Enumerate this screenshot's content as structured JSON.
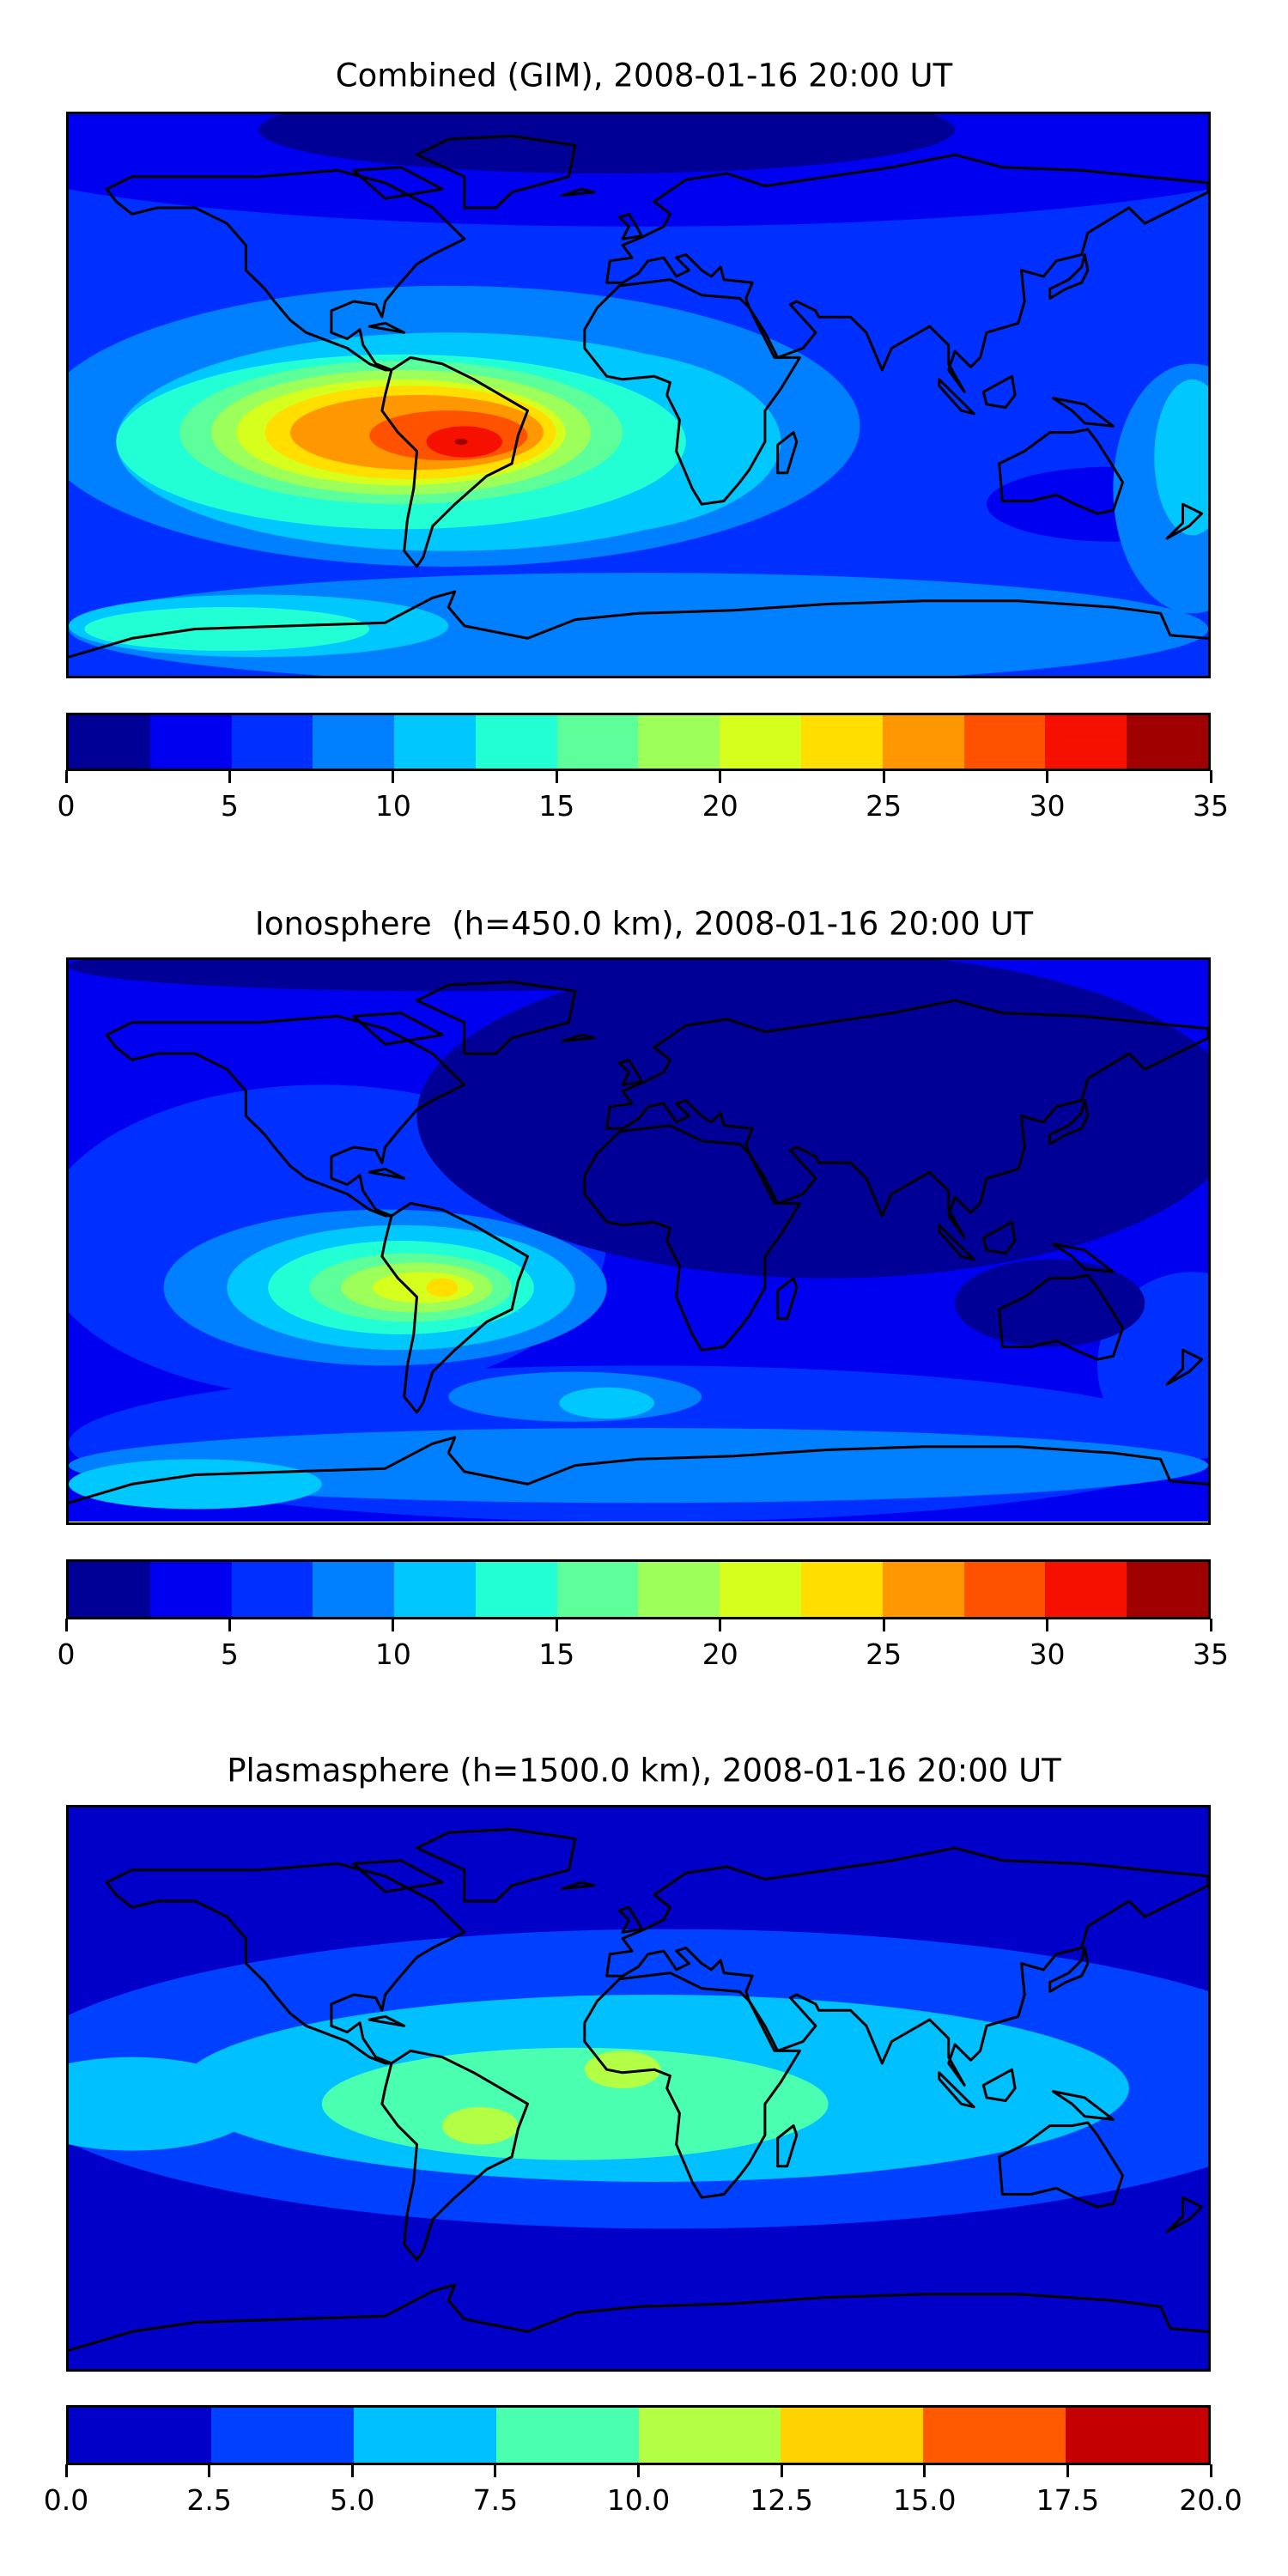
{
  "chart_data": [
    {
      "type": "heatmap",
      "subtype": "filled-contour world map",
      "title": "Combined (GIM), 2008-01-16 20:00 UT",
      "colorbar": {
        "levels": [
          0,
          2.5,
          5,
          7.5,
          10,
          12.5,
          15,
          17.5,
          20,
          22.5,
          25,
          27.5,
          30,
          32.5,
          35
        ],
        "ticks": [
          "0",
          "5",
          "10",
          "15",
          "20",
          "25",
          "30",
          "35"
        ],
        "tick_values": [
          0,
          5,
          10,
          15,
          20,
          25,
          30,
          35
        ],
        "colors": [
          "#000096",
          "#0000f0",
          "#0030ff",
          "#0080ff",
          "#00c8ff",
          "#22ffd5",
          "#5cff9a",
          "#9cff5a",
          "#d6ff1e",
          "#ffde00",
          "#ff9800",
          "#ff5200",
          "#f51000",
          "#a00000"
        ],
        "range": [
          0,
          35
        ]
      },
      "peak_region": "South America / South Atlantic, max ~30-32.5"
    },
    {
      "type": "heatmap",
      "subtype": "filled-contour world map",
      "title": "Ionosphere  (h=450.0 km), 2008-01-16 20:00 UT",
      "colorbar": {
        "levels": [
          0,
          2.5,
          5,
          7.5,
          10,
          12.5,
          15,
          17.5,
          20,
          22.5,
          25,
          27.5,
          30,
          32.5,
          35
        ],
        "ticks": [
          "0",
          "5",
          "10",
          "15",
          "20",
          "25",
          "30",
          "35"
        ],
        "tick_values": [
          0,
          5,
          10,
          15,
          20,
          25,
          30,
          35
        ],
        "colors": [
          "#000096",
          "#0000f0",
          "#0030ff",
          "#0080ff",
          "#00c8ff",
          "#22ffd5",
          "#5cff9a",
          "#9cff5a",
          "#d6ff1e",
          "#ffde00",
          "#ff9800",
          "#ff5200",
          "#f51000",
          "#a00000"
        ],
        "range": [
          0,
          35
        ]
      },
      "peak_region": "South America, max ~22.5-25"
    },
    {
      "type": "heatmap",
      "subtype": "filled-contour world map",
      "title": "Plasmasphere (h=1500.0 km), 2008-01-16 20:00 UT",
      "colorbar": {
        "levels": [
          0,
          2.5,
          5,
          7.5,
          10,
          12.5,
          15,
          17.5,
          20
        ],
        "ticks": [
          "0.0",
          "2.5",
          "5.0",
          "7.5",
          "10.0",
          "12.5",
          "15.0",
          "17.5",
          "20.0"
        ],
        "tick_values": [
          0,
          2.5,
          5,
          7.5,
          10,
          12.5,
          15,
          17.5,
          20
        ],
        "colors": [
          "#0000c8",
          "#0040ff",
          "#00c0ff",
          "#4affb0",
          "#b2ff46",
          "#ffd200",
          "#ff5a00",
          "#c40000"
        ],
        "range": [
          0,
          20
        ]
      },
      "peak_region": "Brazil and central Africa, max ~10-12.5"
    }
  ]
}
